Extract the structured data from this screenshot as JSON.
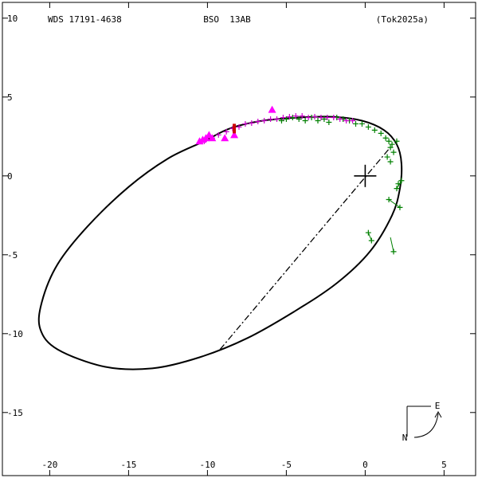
{
  "chart_data": {
    "type": "scatter",
    "header": {
      "left": "WDS 17191-4638",
      "center": "BSO  13AB",
      "right": "(Tok2025a)"
    },
    "xlim": [
      -23,
      7
    ],
    "ylim": [
      19,
      -11
    ],
    "x_ticks": [
      {
        "value": -20,
        "label": "-20"
      },
      {
        "value": -15,
        "label": "-15"
      },
      {
        "value": -10,
        "label": "-10"
      },
      {
        "value": -5,
        "label": "-5"
      },
      {
        "value": 0,
        "label": "0"
      },
      {
        "value": 5,
        "label": "5"
      }
    ],
    "y_ticks": [
      {
        "value": -10,
        "label": "10"
      },
      {
        "value": -5,
        "label": "5"
      },
      {
        "value": 0,
        "label": "0"
      },
      {
        "value": 5,
        "label": "-5"
      },
      {
        "value": 10,
        "label": "-10"
      },
      {
        "value": 15,
        "label": "-15"
      }
    ],
    "grid": false,
    "primary": {
      "x": 0,
      "y": 0
    },
    "orbit": {
      "points": [
        [
          -10.2,
          -2.2
        ],
        [
          -8.6,
          -3.0
        ],
        [
          -6.5,
          -3.5
        ],
        [
          -4.2,
          -3.7
        ],
        [
          -2.1,
          -3.75
        ],
        [
          -0.2,
          -3.5
        ],
        [
          1.2,
          -2.9
        ],
        [
          2.0,
          -2.0
        ],
        [
          2.3,
          -0.8
        ],
        [
          2.2,
          0.8
        ],
        [
          1.7,
          2.5
        ],
        [
          0.3,
          4.8
        ],
        [
          -1.8,
          6.8
        ],
        [
          -4.5,
          8.6
        ],
        [
          -7.5,
          10.3
        ],
        [
          -10.5,
          11.5
        ],
        [
          -13.5,
          12.2
        ],
        [
          -16.5,
          12.1
        ],
        [
          -19.5,
          11.0
        ],
        [
          -20.6,
          9.7
        ],
        [
          -20.5,
          8.0
        ],
        [
          -19.5,
          5.6
        ],
        [
          -17.6,
          3.2
        ],
        [
          -15.0,
          0.7
        ],
        [
          -12.5,
          -1.1
        ],
        [
          -10.2,
          -2.2
        ]
      ]
    },
    "line_of_nodes": {
      "from": [
        -9.2,
        11.0
      ],
      "to": [
        1.5,
        -1.7
      ]
    },
    "series": [
      {
        "name": "",
        "marker": "plus",
        "color": "#008000",
        "points": [
          [
            -5.3,
            -3.5
          ],
          [
            -5.0,
            -3.6
          ],
          [
            -4.6,
            -3.7
          ],
          [
            -4.2,
            -3.6
          ],
          [
            -3.8,
            -3.5
          ],
          [
            -3.4,
            -3.7
          ],
          [
            -3.0,
            -3.5
          ],
          [
            -2.6,
            -3.6
          ],
          [
            -2.3,
            -3.4
          ],
          [
            -1.8,
            -3.7
          ],
          [
            -1.4,
            -3.6
          ],
          [
            -1.0,
            -3.5
          ],
          [
            -0.6,
            -3.3
          ],
          [
            -0.2,
            -3.3
          ],
          [
            0.2,
            -3.1
          ],
          [
            0.6,
            -2.9
          ],
          [
            1.0,
            -2.7
          ],
          [
            1.3,
            -2.4
          ],
          [
            1.5,
            -2.2
          ],
          [
            1.7,
            -2.0
          ],
          [
            1.6,
            -1.8
          ],
          [
            1.8,
            -1.5
          ],
          [
            1.4,
            -1.2
          ],
          [
            1.6,
            -0.9
          ],
          [
            2.0,
            -2.2
          ],
          [
            2.3,
            0.3
          ],
          [
            2.1,
            0.5
          ],
          [
            2.0,
            0.8
          ],
          [
            1.5,
            1.5
          ],
          [
            2.2,
            2.0
          ],
          [
            0.2,
            3.6
          ],
          [
            0.4,
            4.1
          ],
          [
            1.8,
            4.8
          ]
        ],
        "connectors": [
          [
            [
              1.5,
              1.5
            ],
            [
              2.2,
              2.0
            ]
          ],
          [
            [
              2.0,
              0.8
            ],
            [
              2.3,
              0.3
            ]
          ],
          [
            [
              0.2,
              3.6
            ],
            [
              0.4,
              4.1
            ]
          ],
          [
            [
              1.6,
              3.9
            ],
            [
              1.8,
              4.8
            ]
          ]
        ]
      },
      {
        "name": "",
        "marker": "plus",
        "color": "#cc00cc",
        "points": [
          [
            -10.2,
            -2.2
          ],
          [
            -9.7,
            -2.4
          ],
          [
            -9.3,
            -2.6
          ],
          [
            -8.8,
            -2.8
          ],
          [
            -8.4,
            -3.0
          ],
          [
            -8.0,
            -3.1
          ],
          [
            -7.6,
            -3.3
          ],
          [
            -7.2,
            -3.35
          ],
          [
            -6.8,
            -3.45
          ],
          [
            -6.4,
            -3.5
          ],
          [
            -6.0,
            -3.6
          ],
          [
            -5.6,
            -3.6
          ],
          [
            -5.2,
            -3.7
          ],
          [
            -4.8,
            -3.75
          ],
          [
            -4.4,
            -3.8
          ],
          [
            -4.0,
            -3.8
          ],
          [
            -3.6,
            -3.7
          ],
          [
            -3.2,
            -3.75
          ],
          [
            -2.8,
            -3.7
          ],
          [
            -2.4,
            -3.7
          ],
          [
            -2.0,
            -3.7
          ],
          [
            -1.6,
            -3.6
          ],
          [
            -1.2,
            -3.5
          ],
          [
            -0.8,
            -3.5
          ]
        ]
      },
      {
        "name": "",
        "marker": "triangle",
        "color": "#ff00ff",
        "points": [
          [
            -10.5,
            -2.2
          ],
          [
            -10.3,
            -2.3
          ],
          [
            -10.1,
            -2.4
          ],
          [
            -9.9,
            -2.6
          ],
          [
            -9.7,
            -2.4
          ],
          [
            -8.9,
            -2.4
          ],
          [
            -8.3,
            -2.6
          ],
          [
            -5.9,
            -4.2
          ]
        ]
      },
      {
        "name": "",
        "marker": "bar",
        "color": "#cc0000",
        "points": [
          [
            -8.3,
            -3.0
          ]
        ]
      }
    ],
    "compass": {
      "east": "E",
      "north": "N"
    }
  }
}
